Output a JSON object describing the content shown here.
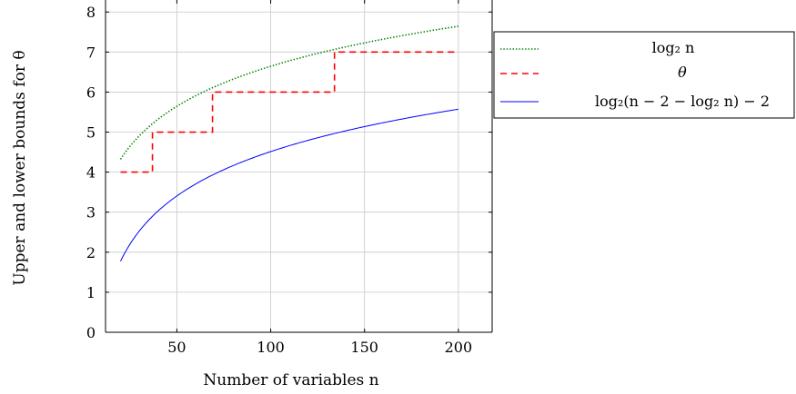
{
  "chart_data": {
    "type": "line",
    "xlabel": "Number of variables n",
    "ylabel": "Upper and lower bounds for θ",
    "xlim": [
      12,
      218
    ],
    "ylim": [
      0,
      8.3
    ],
    "x_ticks": [
      50,
      100,
      150,
      200
    ],
    "y_ticks": [
      0,
      1,
      2,
      3,
      4,
      5,
      6,
      7,
      8
    ],
    "grid": true,
    "legend_position": "right",
    "series": [
      {
        "name": "log₂ n",
        "style": "dotted",
        "color": "#008000",
        "function": "log2(n)",
        "x_range": [
          20,
          200
        ]
      },
      {
        "name": "θ",
        "style": "dashed",
        "color": "#ff0000",
        "points": [
          [
            20,
            4
          ],
          [
            37,
            4
          ],
          [
            37,
            5
          ],
          [
            69,
            5
          ],
          [
            69,
            6
          ],
          [
            134,
            6
          ],
          [
            134,
            7
          ],
          [
            200,
            7
          ]
        ]
      },
      {
        "name": "log₂(n − 2 − log₂ n) − 2",
        "style": "solid",
        "color": "#0000ff",
        "function": "log2(n - 2 - log2(n)) - 2",
        "x_range": [
          20,
          200
        ]
      }
    ]
  }
}
